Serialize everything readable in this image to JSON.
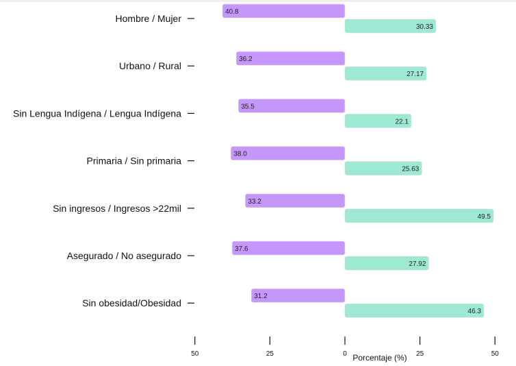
{
  "chart_data": {
    "type": "bar",
    "orientation": "horizontal-diverging",
    "xlabel": "Porcentaje (%)",
    "xlim": [
      -50,
      50
    ],
    "x_ticks": [
      {
        "value": -50,
        "label": "50"
      },
      {
        "value": -25,
        "label": "25"
      },
      {
        "value": 0,
        "label": "0"
      },
      {
        "value": 25,
        "label": "25"
      },
      {
        "value": 50,
        "label": "50"
      }
    ],
    "categories": [
      "Hombre / Mujer",
      "Urbano / Rural",
      "Sin Lengua Indígena /  Lengua Indígena",
      "Primaria / Sin primaria",
      "Sin ingresos / Ingresos >22mil",
      "Asegurado / No asegurado",
      "Sin obesidad/Obesidad"
    ],
    "series": [
      {
        "color": "#c597fa",
        "direction": "left",
        "values": [
          40.8,
          36.2,
          35.5,
          38.0,
          33.2,
          37.6,
          31.2
        ],
        "labels": [
          "40.8",
          "36.2",
          "35.5",
          "38.0",
          "33.2",
          "37.6",
          "31.2"
        ]
      },
      {
        "color": "#9de9d3",
        "direction": "right",
        "values": [
          30.33,
          27.17,
          22.1,
          25.63,
          49.5,
          27.92,
          46.3
        ],
        "labels": [
          "30.33",
          "27.17",
          "22.1",
          "25.63",
          "49.5",
          "27.92",
          "46.3"
        ]
      }
    ],
    "grid": false,
    "legend": "none"
  }
}
